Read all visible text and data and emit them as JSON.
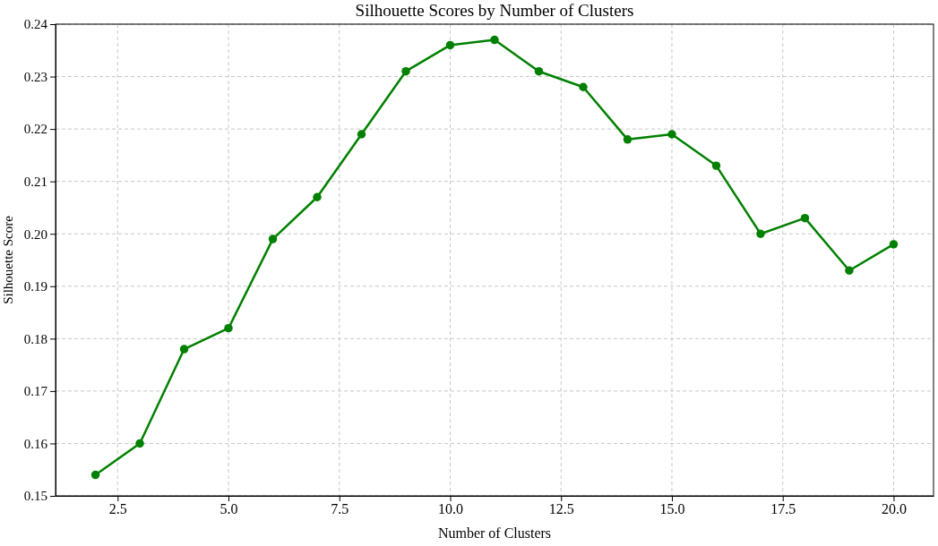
{
  "chart_data": {
    "type": "line",
    "title": "Silhouette Scores by Number of Clusters",
    "xlabel": "Number of Clusters",
    "ylabel": "Silhouette Score",
    "x": [
      2,
      3,
      4,
      5,
      6,
      7,
      8,
      9,
      10,
      11,
      12,
      13,
      14,
      15,
      16,
      17,
      18,
      19,
      20
    ],
    "series": [
      {
        "color": "#008000",
        "values": [
          0.154,
          0.16,
          0.178,
          0.182,
          0.199,
          0.207,
          0.219,
          0.231,
          0.236,
          0.237,
          0.231,
          0.228,
          0.218,
          0.219,
          0.213,
          0.2,
          0.203,
          0.193,
          0.198
        ]
      }
    ],
    "xlim": [
      1.1,
      20.9
    ],
    "xticks": [
      {
        "value": 2.5,
        "label": "2.5"
      },
      {
        "value": 5,
        "label": "5.0"
      },
      {
        "value": 7.5,
        "label": "7.5"
      },
      {
        "value": 10,
        "label": "10.0"
      },
      {
        "value": 12.5,
        "label": "12.5"
      },
      {
        "value": 15,
        "label": "15.0"
      },
      {
        "value": 17.5,
        "label": "17.5"
      },
      {
        "value": 20,
        "label": "20.0"
      }
    ],
    "ylim": [
      0.15,
      0.24
    ],
    "yticks": [
      0.15,
      {
        "value": 0.16,
        "label": "0.16"
      },
      0.17,
      0.18,
      0.19,
      {
        "value": 0.2,
        "label": "0.20"
      },
      0.21,
      0.22,
      0.23,
      0.24
    ],
    "grid": true,
    "marker": "circle",
    "line_style": "solid"
  }
}
